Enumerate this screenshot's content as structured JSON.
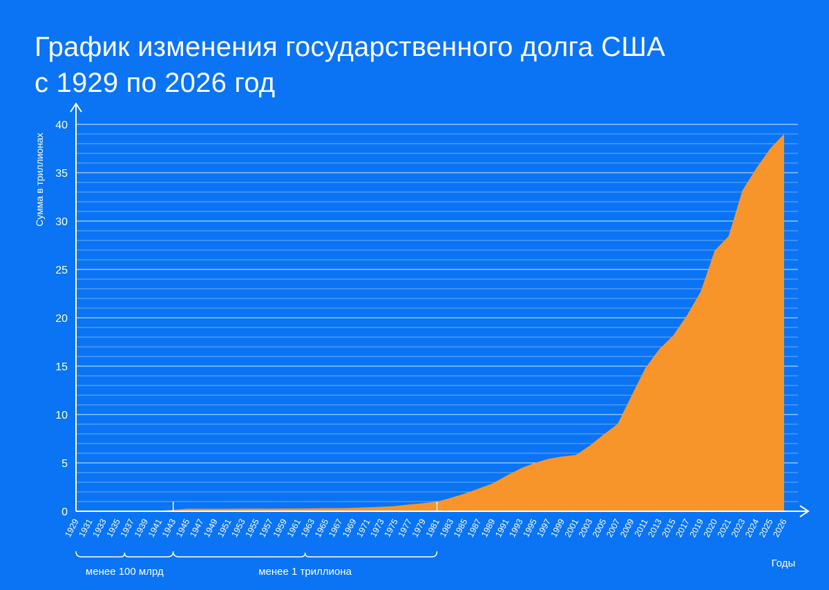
{
  "colors": {
    "background": "#0a74f5",
    "area": "#f7952b",
    "axis": "#ffffff",
    "text": "#ffffff"
  },
  "title_lines": [
    "График изменения государственного долга США",
    "с 1929 по 2026 год"
  ],
  "chart_data": {
    "type": "area",
    "title": "График изменения государственного долга США с 1929 по 2026 год",
    "xlabel": "Годы",
    "ylabel": "Сумма в триллионах",
    "ylim": [
      0,
      40
    ],
    "yticks": [
      0,
      5,
      10,
      15,
      20,
      25,
      30,
      35,
      40
    ],
    "grid": true,
    "x_labels": [
      "1929",
      "1931",
      "1933",
      "1935",
      "1937",
      "1939",
      "1941",
      "1943",
      "1945",
      "1947",
      "1949",
      "1951",
      "1953",
      "1955",
      "1957",
      "1959",
      "1961",
      "1963",
      "1965",
      "1967",
      "1969",
      "1971",
      "1973",
      "1975",
      "1977",
      "1979",
      "1981",
      "1983",
      "1985",
      "1987",
      "1989",
      "1991",
      "1993",
      "1995",
      "1997",
      "1999",
      "2001",
      "2003",
      "2005",
      "2007",
      "2009",
      "2011",
      "2013",
      "2015",
      "2017",
      "2019",
      "2020",
      "2021",
      "2023",
      "2024",
      "2025",
      "2026"
    ],
    "values": [
      0.017,
      0.017,
      0.023,
      0.029,
      0.036,
      0.04,
      0.049,
      0.137,
      0.259,
      0.258,
      0.253,
      0.255,
      0.266,
      0.274,
      0.272,
      0.285,
      0.289,
      0.306,
      0.317,
      0.326,
      0.354,
      0.398,
      0.458,
      0.533,
      0.699,
      0.827,
      0.995,
      1.38,
      1.82,
      2.35,
      2.87,
      3.67,
      4.41,
      4.97,
      5.41,
      5.66,
      5.81,
      6.78,
      7.93,
      9.01,
      11.91,
      14.79,
      16.74,
      18.15,
      20.24,
      22.72,
      26.95,
      28.43,
      33.17,
      35.46,
      37.5,
      39.0
    ],
    "brackets": [
      {
        "label": "менее 100 млрд",
        "from": "1929",
        "to": "1943"
      },
      {
        "label": "менее 1 триллиона",
        "from": "1943",
        "to": "1981"
      }
    ]
  }
}
